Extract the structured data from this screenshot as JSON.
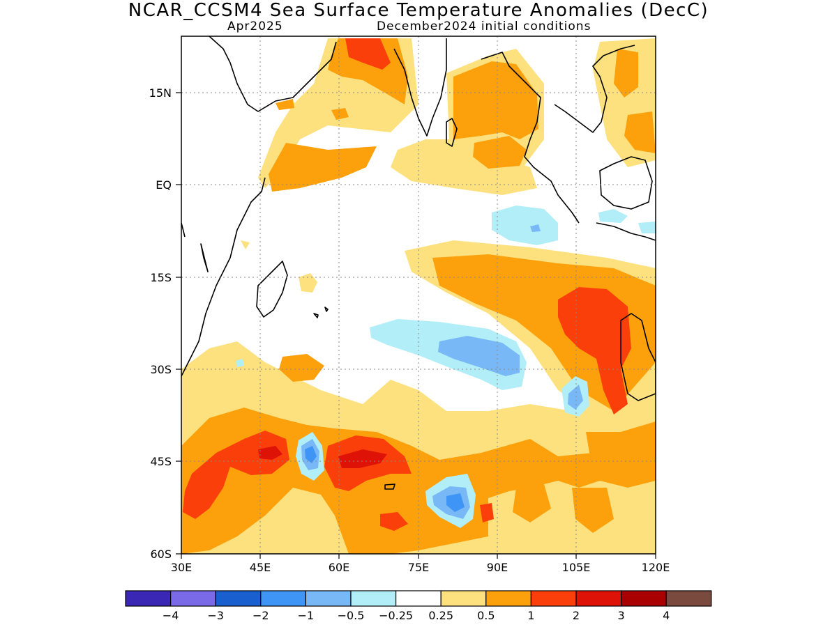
{
  "title": "NCAR_CCSM4 Sea Surface Temperature Anomalies (DecC)",
  "subtitle_left": "Apr2025",
  "subtitle_right": "December2024 initial conditions",
  "lat_ticks": [
    "15N",
    "EQ",
    "15S",
    "30S",
    "45S",
    "60S"
  ],
  "lon_ticks": [
    "30E",
    "45E",
    "60E",
    "75E",
    "90E",
    "105E",
    "120E"
  ],
  "colorbar": {
    "colors": [
      "#3a27b5",
      "#7b6ae8",
      "#1a5fd0",
      "#3f95f5",
      "#78b8f6",
      "#b2eef8",
      "#ffffff",
      "#fde17f",
      "#fca10b",
      "#fb3f0b",
      "#df1207",
      "#a90101",
      "#7b4a3f"
    ],
    "labels": [
      "-4",
      "-3",
      "-2",
      "-1",
      "-0.5",
      "-0.25",
      "0.25",
      "0.5",
      "1",
      "2",
      "3",
      "4"
    ]
  }
}
